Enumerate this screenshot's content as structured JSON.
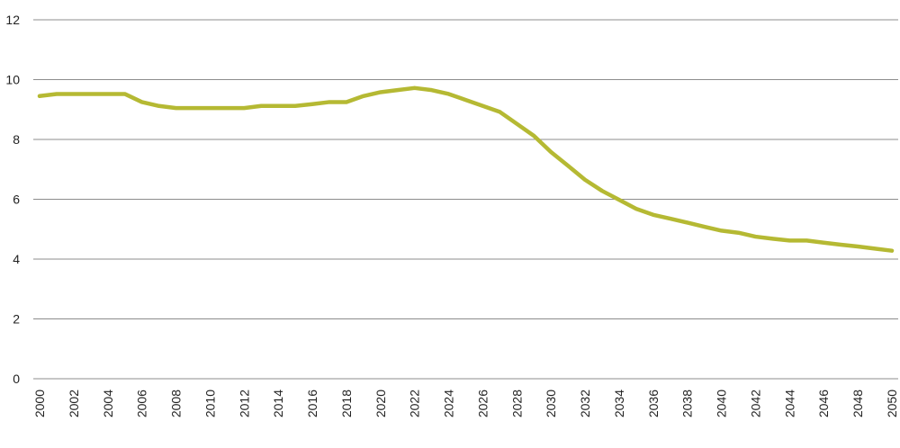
{
  "chart_data": {
    "type": "line",
    "title": "",
    "xlabel": "",
    "ylabel": "",
    "xlim": [
      2000,
      2050
    ],
    "ylim": [
      0,
      12
    ],
    "y_ticks": [
      0,
      2,
      4,
      6,
      8,
      10,
      12
    ],
    "x_ticks": [
      2000,
      2002,
      2004,
      2006,
      2008,
      2010,
      2012,
      2014,
      2016,
      2018,
      2020,
      2022,
      2024,
      2026,
      2028,
      2030,
      2032,
      2034,
      2036,
      2038,
      2040,
      2042,
      2044,
      2046,
      2048,
      2050
    ],
    "grid": "horizontal",
    "legend": "none",
    "series": [
      {
        "color": "#b5b933",
        "x": [
          2000,
          2001,
          2002,
          2003,
          2004,
          2005,
          2006,
          2007,
          2008,
          2009,
          2010,
          2011,
          2012,
          2013,
          2014,
          2015,
          2016,
          2017,
          2018,
          2019,
          2020,
          2021,
          2022,
          2023,
          2024,
          2025,
          2026,
          2027,
          2028,
          2029,
          2030,
          2031,
          2032,
          2033,
          2034,
          2035,
          2036,
          2037,
          2038,
          2039,
          2040,
          2041,
          2042,
          2043,
          2044,
          2045,
          2046,
          2047,
          2048,
          2049,
          2050
        ],
        "values": [
          9.45,
          9.52,
          9.52,
          9.52,
          9.52,
          9.52,
          9.25,
          9.12,
          9.05,
          9.05,
          9.05,
          9.05,
          9.05,
          9.12,
          9.12,
          9.12,
          9.18,
          9.25,
          9.25,
          9.45,
          9.58,
          9.65,
          9.72,
          9.65,
          9.52,
          9.32,
          9.12,
          8.92,
          8.52,
          8.12,
          7.58,
          7.12,
          6.65,
          6.28,
          5.98,
          5.68,
          5.48,
          5.35,
          5.22,
          5.08,
          4.95,
          4.88,
          4.75,
          4.68,
          4.62,
          4.62,
          4.55,
          4.48,
          4.42,
          4.35,
          4.28
        ]
      }
    ]
  }
}
